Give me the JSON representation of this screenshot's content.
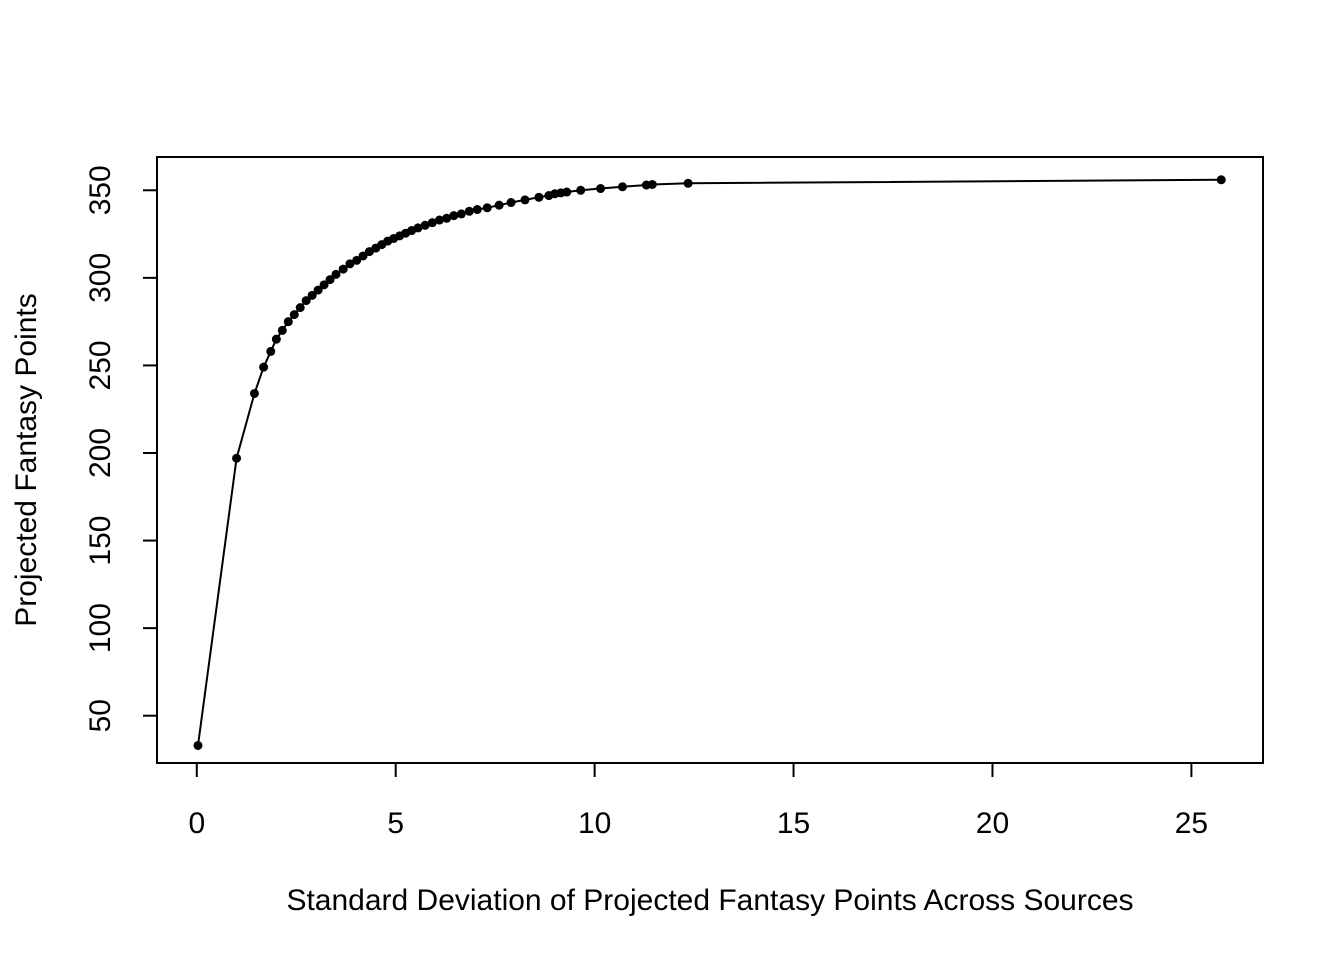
{
  "chart_data": {
    "type": "line",
    "title": "",
    "xlabel": "Standard Deviation of Projected Fantasy Points Across Sources",
    "ylabel": "Projected Fantasy Points",
    "xlim": [
      -1,
      26.8
    ],
    "ylim": [
      23,
      369
    ],
    "xticks": [
      0,
      5,
      10,
      15,
      20,
      25
    ],
    "yticks": [
      50,
      100,
      150,
      200,
      250,
      300,
      350
    ],
    "xtick_labels": [
      "0",
      "5",
      "10",
      "15",
      "20",
      "25"
    ],
    "ytick_labels": [
      "50",
      "100",
      "150",
      "200",
      "250",
      "300",
      "350"
    ],
    "grid": false,
    "legend": "none",
    "line_color": "#000000",
    "marker": "filled-circle",
    "series": [
      {
        "x": [
          0.03,
          1.0,
          1.45,
          1.68,
          1.86,
          2.0,
          2.15,
          2.3,
          2.45,
          2.6,
          2.75,
          2.9,
          3.05,
          3.2,
          3.35,
          3.5,
          3.68,
          3.85,
          4.02,
          4.18,
          4.34,
          4.5,
          4.65,
          4.8,
          4.95,
          5.1,
          5.25,
          5.4,
          5.56,
          5.74,
          5.92,
          6.1,
          6.28,
          6.46,
          6.65,
          6.85,
          7.05,
          7.3,
          7.6,
          7.9,
          8.25,
          8.6,
          8.85,
          9.0,
          9.15,
          9.3,
          9.65,
          10.15,
          10.7,
          11.3,
          11.45,
          12.35,
          25.75
        ],
        "y": [
          33,
          197,
          234,
          249,
          258,
          265,
          270,
          275,
          279,
          283,
          287,
          290,
          293,
          296,
          299,
          302,
          305,
          308,
          310,
          312.5,
          315,
          317,
          319,
          321,
          322.5,
          324,
          325.5,
          327,
          328.5,
          330,
          331.5,
          333,
          334,
          335.5,
          336.5,
          338,
          339,
          340,
          341.5,
          343,
          344.5,
          346,
          347,
          348,
          348.5,
          349,
          350,
          351,
          352,
          353,
          353.3,
          354,
          356
        ]
      }
    ]
  }
}
